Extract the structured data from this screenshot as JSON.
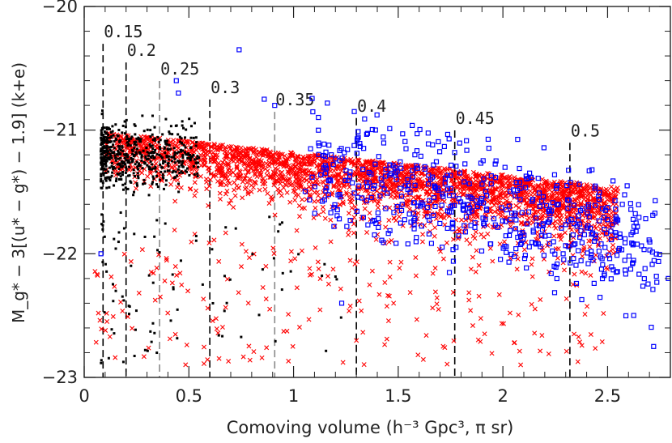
{
  "chart_data": {
    "type": "scatter",
    "xlabel": "Comoving volume (h⁻³ Gpc³, π sr)",
    "ylabel": "M_g* − 3[(u* − g*) − 1.9] (k+e)",
    "xlim": [
      0,
      2.8
    ],
    "ylim": [
      -20,
      -23
    ],
    "x_ticks": [
      0,
      0.5,
      1,
      1.5,
      2,
      2.5
    ],
    "x_tick_labels": [
      "0",
      "0.5",
      "1",
      "1.5",
      "2",
      "2.5"
    ],
    "y_ticks": [
      -20,
      -21,
      -22,
      -23
    ],
    "y_tick_labels": [
      "−20",
      "−21",
      "−22",
      "−23"
    ],
    "redshift_markers": [
      {
        "label": "0.15",
        "x": 0.09,
        "y_top": -20.25,
        "color": "#000000"
      },
      {
        "label": "0.2",
        "x": 0.2,
        "y_top": -20.4,
        "color": "#000000"
      },
      {
        "label": "0.25",
        "x": 0.36,
        "y_top": -20.55,
        "color": "#888888"
      },
      {
        "label": "0.3",
        "x": 0.6,
        "y_top": -20.7,
        "color": "#000000"
      },
      {
        "label": "0.35",
        "x": 0.91,
        "y_top": -20.8,
        "color": "#888888"
      },
      {
        "label": "0.4",
        "x": 1.3,
        "y_top": -20.85,
        "color": "#000000"
      },
      {
        "label": "0.45",
        "x": 1.77,
        "y_top": -20.95,
        "color": "#000000"
      },
      {
        "label": "0.5",
        "x": 2.32,
        "y_top": -21.05,
        "color": "#000000"
      }
    ],
    "series": [
      {
        "name": "black dots",
        "marker": "dot",
        "color": "#000000",
        "x_range": [
          0.08,
          0.55
        ],
        "y_center": -21.2,
        "y_spread": 0.35,
        "count": 520,
        "tail": {
          "x_range": [
            0.08,
            1.3
          ],
          "y_range": [
            -21.6,
            -22.9
          ],
          "count": 90
        }
      },
      {
        "name": "red crosses",
        "marker": "cross",
        "color": "#ff0000",
        "x_range": [
          0.1,
          2.55
        ],
        "y_top": -21.0,
        "count": 2600,
        "tail": {
          "x_range": [
            0.05,
            2.5
          ],
          "y_range": [
            -21.8,
            -22.9
          ],
          "count": 240
        }
      },
      {
        "name": "blue squares",
        "marker": "square",
        "color": "#0000ff",
        "x_range": [
          0.08,
          2.8
        ],
        "count": 560,
        "outliers": [
          [
            0.08,
            -22.0
          ],
          [
            0.44,
            -20.6
          ],
          [
            0.45,
            -20.7
          ],
          [
            0.74,
            -20.35
          ],
          [
            0.86,
            -20.75
          ],
          [
            0.91,
            -20.8
          ],
          [
            1.29,
            -20.85
          ],
          [
            1.23,
            -22.4
          ],
          [
            2.72,
            -22.75
          ],
          [
            2.79,
            -22.2
          ]
        ]
      }
    ]
  }
}
